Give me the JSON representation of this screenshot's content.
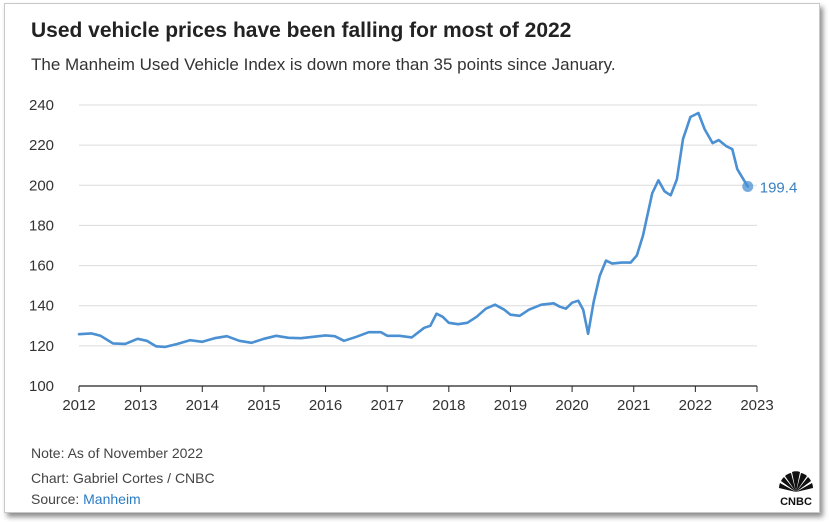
{
  "title": "Used vehicle prices have been falling for most of 2022",
  "subtitle": "The Manheim Used Vehicle Index is down more than 35 points since January.",
  "footer": {
    "note": "Note: As of November 2022",
    "credit": "Chart: Gabriel Cortes / CNBC",
    "source_prefix": "Source: ",
    "source_link": "Manheim"
  },
  "logo": {
    "text": "CNBC",
    "icon": "cnbc-peacock-logo"
  },
  "colors": {
    "line": "#4a90d2",
    "label": "#3a7fc0",
    "grid": "#dcdcdc",
    "axis": "#222222"
  },
  "chart_data": {
    "type": "line",
    "xlim": [
      2012,
      2023
    ],
    "ylim": [
      100,
      240
    ],
    "x_ticks": [
      2012,
      2013,
      2014,
      2015,
      2016,
      2017,
      2018,
      2019,
      2020,
      2021,
      2022,
      2023
    ],
    "y_ticks": [
      100,
      120,
      140,
      160,
      180,
      200,
      220,
      240
    ],
    "grid": true,
    "end_value_label": "199.4",
    "series": [
      {
        "points": [
          [
            2012.0,
            125.8
          ],
          [
            2012.2,
            126.2
          ],
          [
            2012.35,
            125.0
          ],
          [
            2012.55,
            121.2
          ],
          [
            2012.75,
            121.0
          ],
          [
            2012.95,
            123.5
          ],
          [
            2013.1,
            122.5
          ],
          [
            2013.25,
            119.8
          ],
          [
            2013.4,
            119.5
          ],
          [
            2013.6,
            121.0
          ],
          [
            2013.8,
            122.8
          ],
          [
            2014.0,
            122.0
          ],
          [
            2014.2,
            123.8
          ],
          [
            2014.4,
            124.8
          ],
          [
            2014.6,
            122.5
          ],
          [
            2014.8,
            121.5
          ],
          [
            2015.0,
            123.5
          ],
          [
            2015.2,
            125.0
          ],
          [
            2015.4,
            124.0
          ],
          [
            2015.6,
            123.8
          ],
          [
            2015.8,
            124.5
          ],
          [
            2016.0,
            125.2
          ],
          [
            2016.15,
            124.8
          ],
          [
            2016.3,
            122.5
          ],
          [
            2016.5,
            124.5
          ],
          [
            2016.7,
            126.8
          ],
          [
            2016.9,
            126.8
          ],
          [
            2017.0,
            125.0
          ],
          [
            2017.2,
            125.0
          ],
          [
            2017.4,
            124.2
          ],
          [
            2017.6,
            129.0
          ],
          [
            2017.7,
            130.0
          ],
          [
            2017.8,
            136.0
          ],
          [
            2017.9,
            134.5
          ],
          [
            2018.0,
            131.5
          ],
          [
            2018.15,
            130.8
          ],
          [
            2018.3,
            131.5
          ],
          [
            2018.45,
            134.5
          ],
          [
            2018.6,
            138.5
          ],
          [
            2018.75,
            140.5
          ],
          [
            2018.9,
            138.0
          ],
          [
            2019.0,
            135.5
          ],
          [
            2019.15,
            135.0
          ],
          [
            2019.3,
            138.0
          ],
          [
            2019.5,
            140.5
          ],
          [
            2019.7,
            141.2
          ],
          [
            2019.8,
            139.5
          ],
          [
            2019.9,
            138.5
          ],
          [
            2020.0,
            141.5
          ],
          [
            2020.1,
            142.5
          ],
          [
            2020.18,
            138.0
          ],
          [
            2020.26,
            126.0
          ],
          [
            2020.35,
            142.0
          ],
          [
            2020.45,
            155.0
          ],
          [
            2020.55,
            162.5
          ],
          [
            2020.65,
            161.0
          ],
          [
            2020.8,
            161.5
          ],
          [
            2020.95,
            161.5
          ],
          [
            2021.05,
            165.0
          ],
          [
            2021.15,
            175.0
          ],
          [
            2021.3,
            196.0
          ],
          [
            2021.4,
            202.5
          ],
          [
            2021.5,
            197.0
          ],
          [
            2021.6,
            195.0
          ],
          [
            2021.7,
            203.0
          ],
          [
            2021.8,
            223.0
          ],
          [
            2021.92,
            234.0
          ],
          [
            2022.05,
            236.0
          ],
          [
            2022.15,
            228.0
          ],
          [
            2022.28,
            221.0
          ],
          [
            2022.38,
            222.5
          ],
          [
            2022.5,
            219.5
          ],
          [
            2022.6,
            218.0
          ],
          [
            2022.68,
            208.0
          ],
          [
            2022.78,
            203.0
          ],
          [
            2022.85,
            199.4
          ]
        ]
      }
    ]
  }
}
